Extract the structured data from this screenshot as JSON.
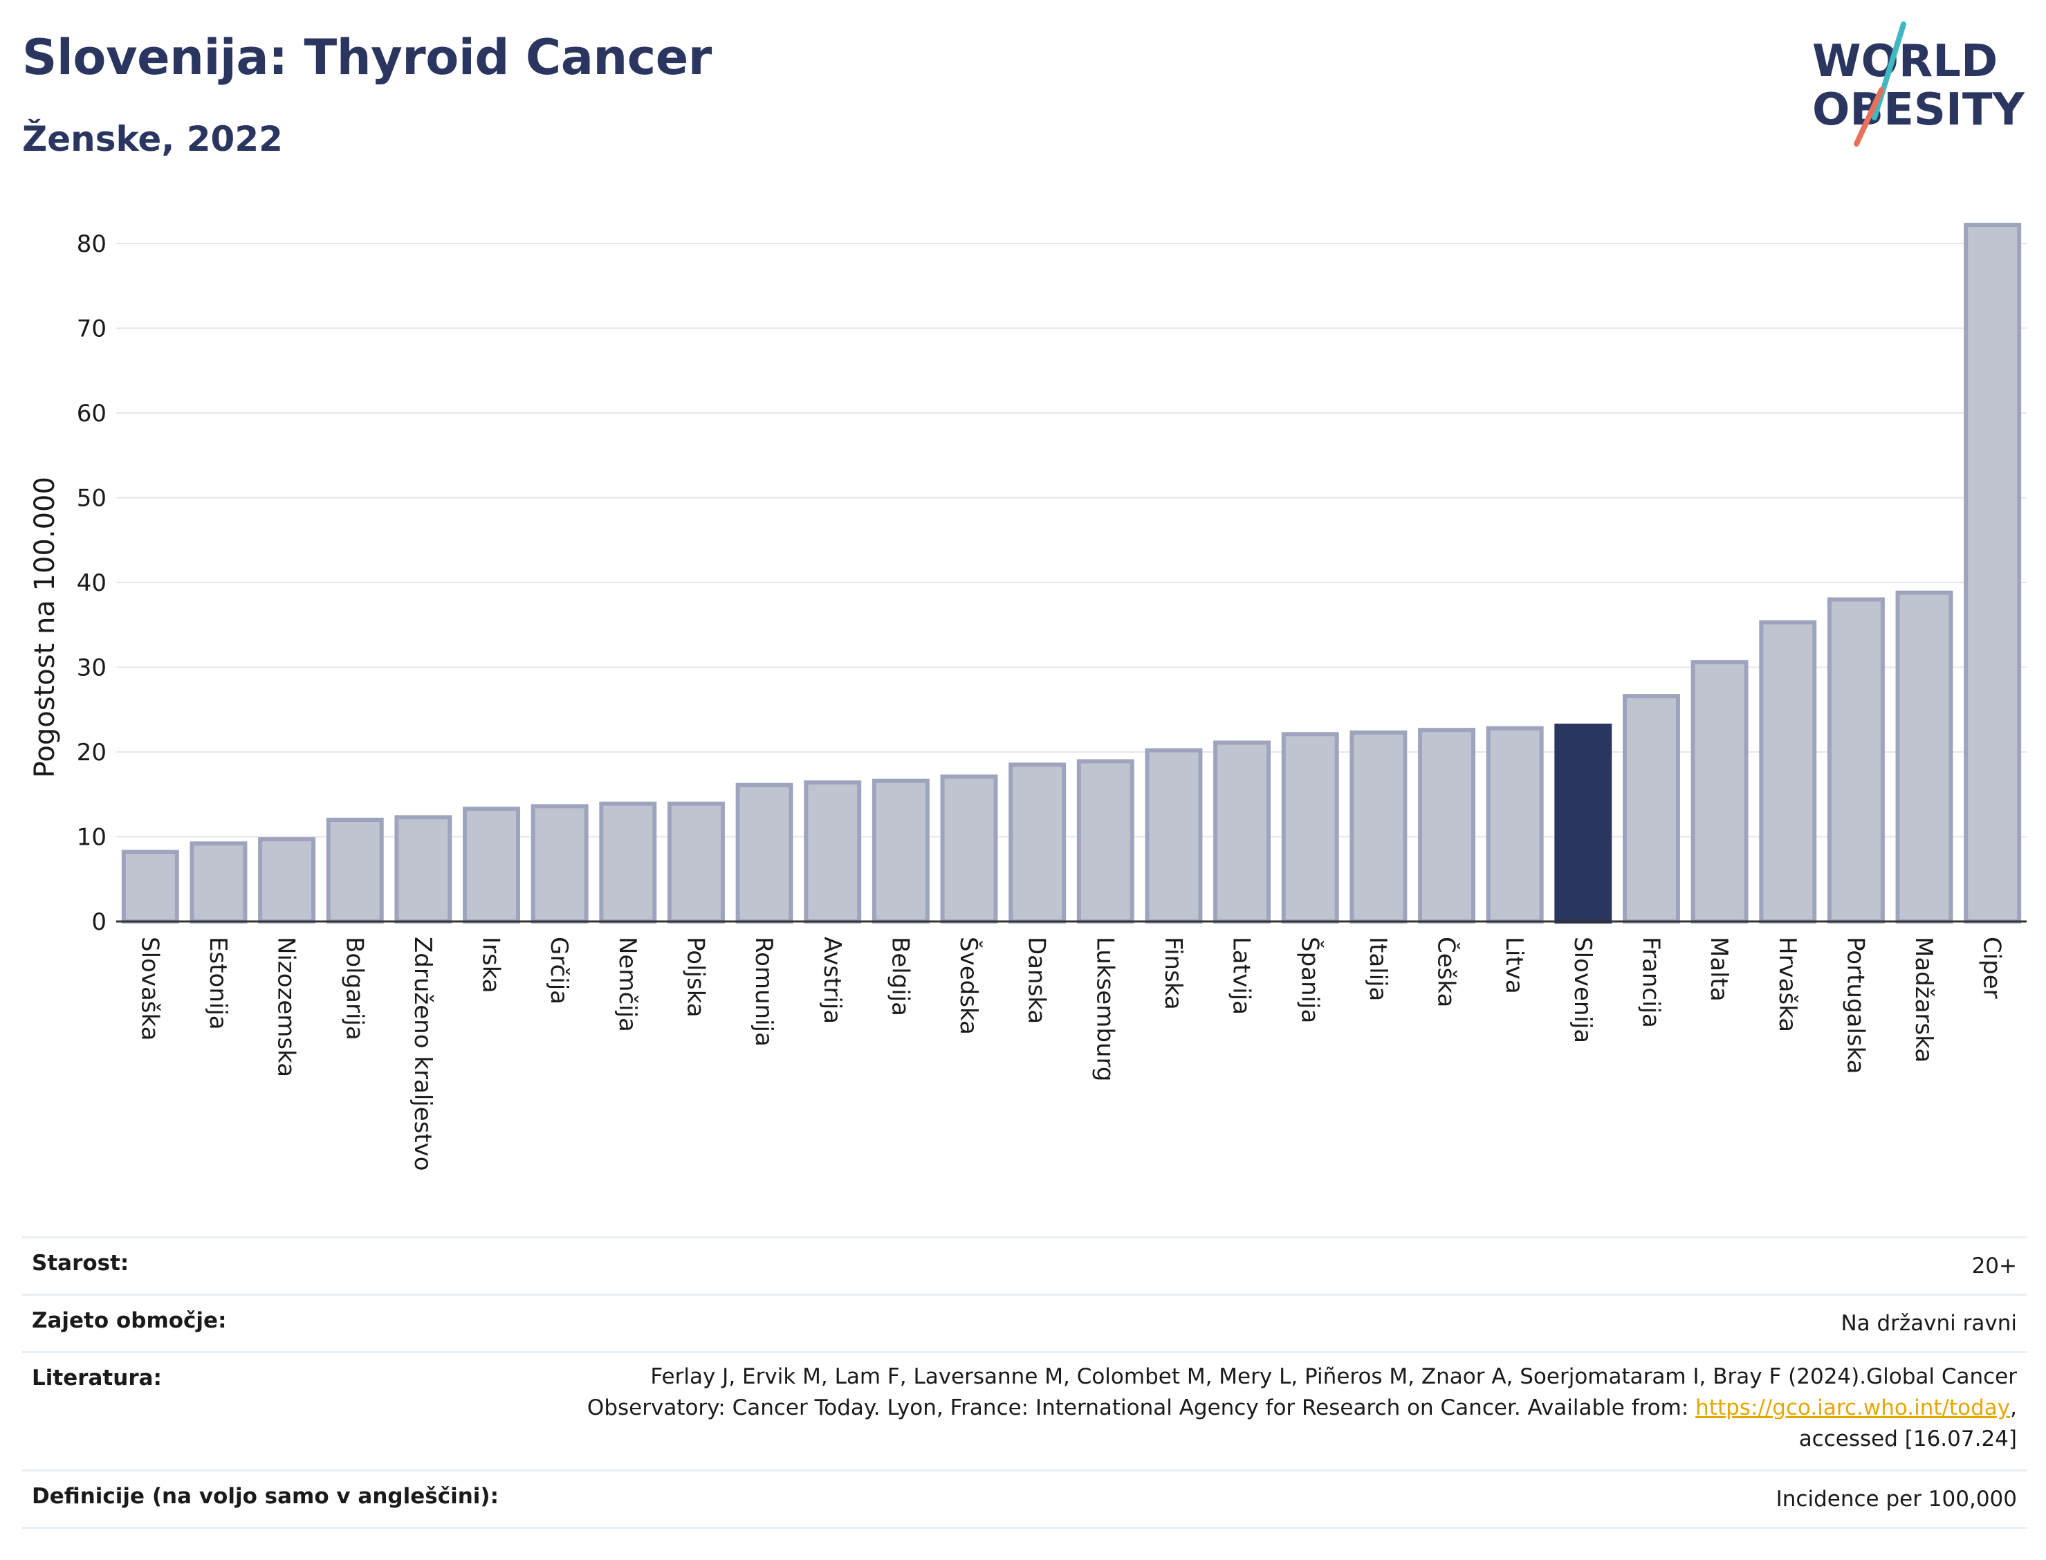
{
  "header": {
    "title": "Slovenija: Thyroid Cancer",
    "subtitle": "Ženske, 2022"
  },
  "logo": {
    "line1": "WORLD",
    "line2": "OBESITY",
    "colors": {
      "text": "#2b3660",
      "slash_teal": "#3fb8c0",
      "slash_coral": "#e8705a"
    }
  },
  "chart_data": {
    "type": "bar",
    "ylabel": "Pogostost na 100.000",
    "xlabel": "",
    "ylim": [
      0,
      82.5
    ],
    "yticks": [
      0,
      10,
      20,
      30,
      40,
      50,
      60,
      70,
      80
    ],
    "grid": true,
    "highlight": "Slovenija",
    "colors": {
      "bar": "#c0c4d0",
      "bar_edge": "#9ea4bd",
      "highlight": "#2b3660",
      "grid": "#e4e6ec",
      "axis": "#333333"
    },
    "categories": [
      "Slovaška",
      "Estonija",
      "Nizozemska",
      "Bolgarija",
      "Združeno kraljestvo",
      "Irska",
      "Grčija",
      "Nemčija",
      "Poljska",
      "Romunija",
      "Avstrija",
      "Belgija",
      "Švedska",
      "Danska",
      "Luksemburg",
      "Finska",
      "Latvija",
      "Španija",
      "Italija",
      "Češka",
      "Litva",
      "Slovenija",
      "Francija",
      "Malta",
      "Hrvaška",
      "Portugalska",
      "Madžarska",
      "Ciper"
    ],
    "values": [
      8.2,
      9.2,
      9.7,
      12.0,
      12.3,
      13.3,
      13.6,
      13.9,
      13.9,
      16.1,
      16.4,
      16.6,
      17.1,
      18.5,
      18.9,
      20.2,
      21.1,
      22.1,
      22.3,
      22.6,
      22.8,
      23.1,
      26.6,
      30.6,
      35.3,
      38.0,
      38.8,
      82.2
    ]
  },
  "meta": {
    "rows": [
      {
        "label": "Starost:",
        "value": "20+"
      },
      {
        "label": "Zajeto območje:",
        "value": "Na državni ravni"
      },
      {
        "label": "Literatura:",
        "value_line1": "Ferlay J, Ervik M, Lam F, Laversanne M, Colombet M, Mery L, Piñeros M, Znaor A, Soerjomataram I, Bray F (2024).Global Cancer",
        "value_line2_pre": "Observatory: Cancer Today. Lyon, France: International Agency for Research on Cancer. Available from: ",
        "value_link": "https://gco.iarc.who.int/today",
        "value_line2_post": ",",
        "value_line3": "accessed [16.07.24]"
      },
      {
        "label": "Definicije (na voljo samo v angleščini):",
        "value": "Incidence per 100,000"
      }
    ]
  }
}
